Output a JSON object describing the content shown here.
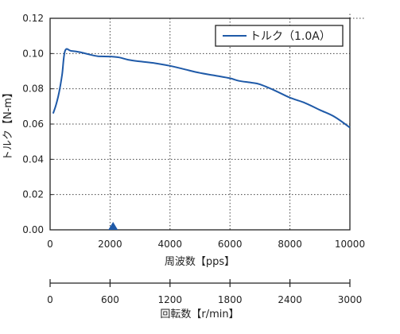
{
  "chart_data": {
    "type": "line",
    "title": "",
    "xlabel": "周波数【pps】",
    "ylabel": "トルク【N-m】",
    "xlim": [
      0,
      10000
    ],
    "ylim": [
      0,
      0.12
    ],
    "x_ticks": [
      "0",
      "2000",
      "4000",
      "6000",
      "8000",
      "10000"
    ],
    "x_tick_values": [
      0,
      2000,
      4000,
      6000,
      8000,
      10000
    ],
    "y_ticks": [
      "0.00",
      "0.02",
      "0.04",
      "0.06",
      "0.08",
      "0.10",
      "0.12"
    ],
    "y_tick_values": [
      0,
      0.02,
      0.04,
      0.06,
      0.08,
      0.1,
      0.12
    ],
    "grid": true,
    "legend_position": "top-right",
    "marker": {
      "shape": "triangle",
      "x": 2100,
      "color": "#1f5aa8"
    },
    "series": [
      {
        "name": "トルク（1.0A）",
        "color": "#1f5aa8",
        "x": [
          100,
          200,
          300,
          400,
          500,
          700,
          1000,
          1300,
          1600,
          2000,
          2300,
          2600,
          3000,
          3500,
          4000,
          4500,
          5000,
          5500,
          6000,
          6300,
          6700,
          7000,
          7500,
          8000,
          8500,
          9000,
          9500,
          10000
        ],
        "y": [
          0.066,
          0.071,
          0.078,
          0.088,
          0.1015,
          0.1015,
          0.1008,
          0.0995,
          0.0985,
          0.0983,
          0.0978,
          0.0965,
          0.0955,
          0.0945,
          0.093,
          0.091,
          0.089,
          0.0875,
          0.086,
          0.0845,
          0.0835,
          0.0825,
          0.079,
          0.075,
          0.072,
          0.068,
          0.064,
          0.058
        ]
      }
    ]
  },
  "secondary_axis": {
    "label": "回転数【r/min】",
    "range": [
      0,
      3000
    ],
    "ticks": [
      "0",
      "600",
      "1200",
      "1800",
      "2400",
      "3000"
    ],
    "tick_values": [
      0,
      600,
      1200,
      1800,
      2400,
      3000
    ]
  },
  "colors": {
    "line": "#1f5aa8",
    "grid": "#444444",
    "axis": "#222222"
  }
}
